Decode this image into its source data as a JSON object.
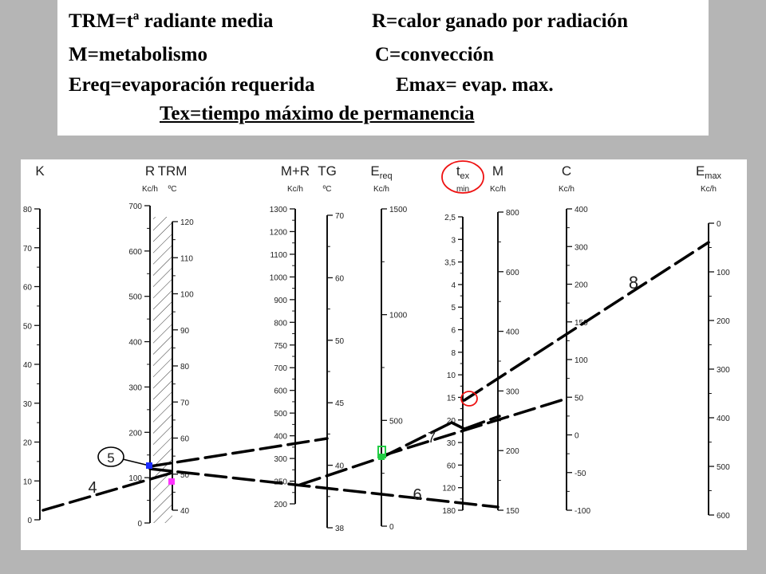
{
  "legend": {
    "trm": "TRM=tª radiante media",
    "r": "R=calor ganado por radiación",
    "m": "M=metabolismo",
    "c": "C=convección",
    "ereq": "Ereq=evaporación requerida",
    "emax": "Emax= evap. max.",
    "tex": "Tex=tiempo máximo de permanencia"
  },
  "scales": {
    "k": {
      "label": "K",
      "ticks": [
        "80",
        "70",
        "60",
        "50",
        "40",
        "30",
        "20",
        "10",
        "0"
      ]
    },
    "r": {
      "label": "R",
      "unit": "Kc/h",
      "ticks": [
        "700",
        "600",
        "500",
        "400",
        "300",
        "200",
        "100",
        "0"
      ]
    },
    "trm": {
      "label": "TRM",
      "unit": "ºC",
      "ticks": [
        "120",
        "110",
        "100",
        "90",
        "80",
        "70",
        "60",
        "50",
        "40"
      ]
    },
    "mr": {
      "label": "M+R",
      "unit": "Kc/h",
      "ticks": [
        "1300",
        "1200",
        "1100",
        "1000",
        "900",
        "800",
        "750",
        "700",
        "600",
        "500",
        "400",
        "300",
        "250",
        "200"
      ]
    },
    "tg": {
      "label": "TG",
      "unit": "ºC",
      "ticks": [
        "70",
        "60",
        "50",
        "45",
        "40",
        "38"
      ]
    },
    "ereq": {
      "label": "E",
      "label_sub": "req",
      "unit": "Kc/h",
      "ticks": [
        "1500",
        "1000",
        "500",
        "0"
      ]
    },
    "tex": {
      "label": "t",
      "label_sub": "ex",
      "unit": "min",
      "ticks": [
        "2,5",
        "3",
        "3,5",
        "4",
        "5",
        "6",
        "8",
        "10",
        "15",
        "20",
        "30",
        "60",
        "120",
        "180"
      ]
    },
    "m": {
      "label": "M",
      "unit": "Kc/h",
      "ticks": [
        "800",
        "600",
        "400",
        "300",
        "200",
        "150"
      ]
    },
    "c": {
      "label": "C",
      "unit": "Kc/h",
      "ticks": [
        "400",
        "300",
        "200",
        "150",
        "100",
        "50",
        "0",
        "-50",
        "-100"
      ]
    },
    "emax": {
      "label": "E",
      "label_sub": "max",
      "unit": "Kc/h",
      "ticks": [
        "0",
        "100",
        "200",
        "300",
        "400",
        "500",
        "600"
      ]
    }
  },
  "step_labels": [
    "4",
    "5",
    "6",
    "7",
    "8"
  ],
  "colors": {
    "blue_marker": "#1a2cff",
    "magenta_marker": "#ff33ff",
    "green_marker": "#22cc44",
    "red_marker": "#ee1111"
  }
}
